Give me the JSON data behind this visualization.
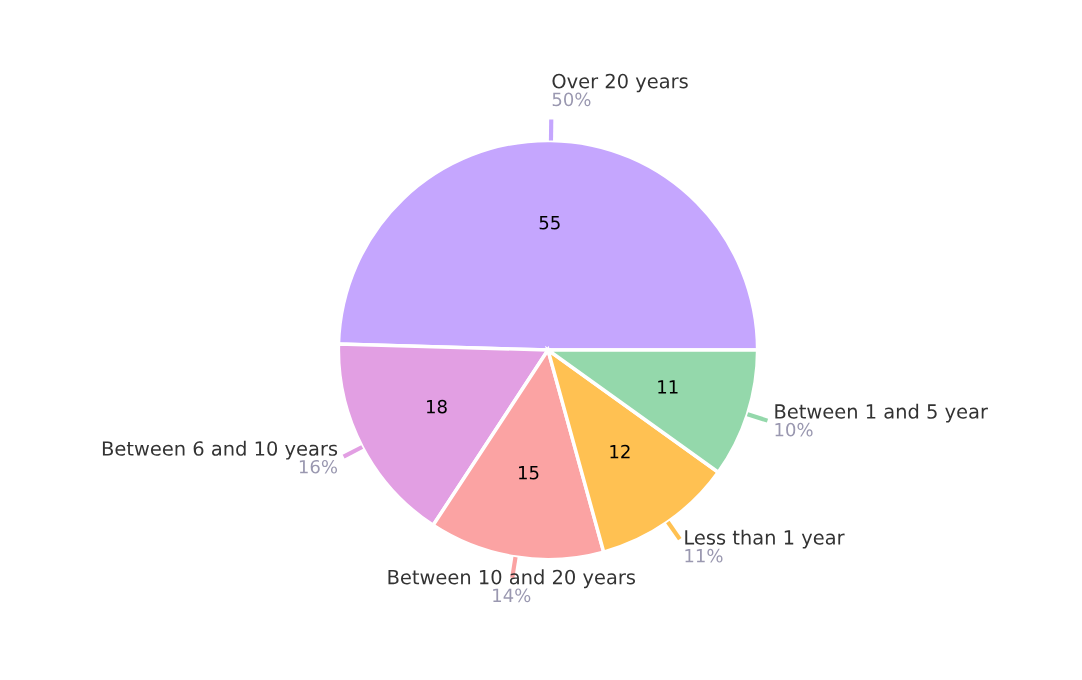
{
  "chart_data": {
    "type": "pie",
    "categories": [
      "Over 20 years",
      "Between 6 and 10 years",
      "Between 10 and 20 years",
      "Less than 1 year",
      "Between 1 and 5 year"
    ],
    "values": [
      55,
      18,
      15,
      12,
      11
    ],
    "colors": [
      "#c5a6fe",
      "#e29fe3",
      "#fba3a3",
      "#ffc152",
      "#94d8ab"
    ],
    "annotations": [
      "50%",
      "16%",
      "14%",
      "11%",
      "10%"
    ],
    "data_labels": true,
    "legend": false
  }
}
